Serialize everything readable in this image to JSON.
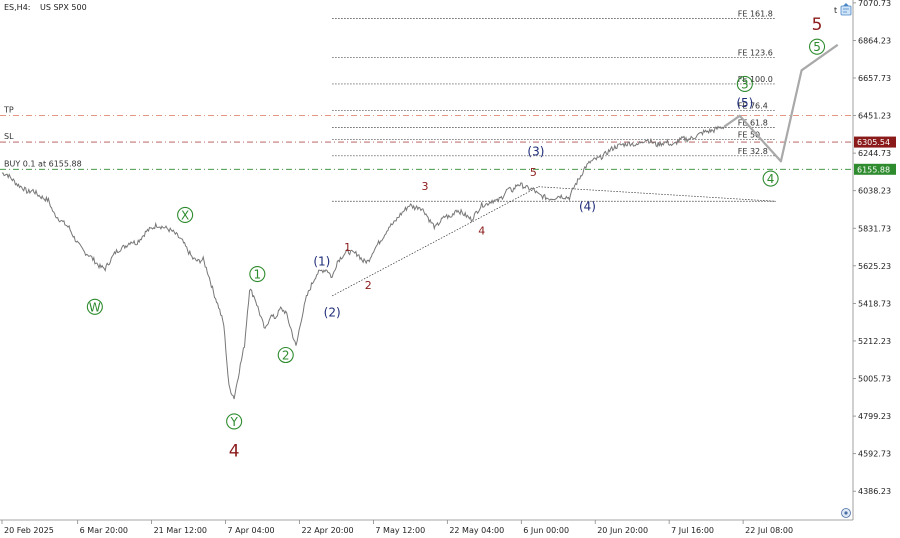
{
  "header": {
    "symbol": "ES,H4:",
    "description": "US SPX 500"
  },
  "corner": {
    "timeframe_label": "t"
  },
  "colors": {
    "price": "#777777",
    "projection": "#a9a9a9",
    "tp": "#e08a72",
    "sl": "#b05050",
    "buy": "#2e8b2e",
    "green": "#2e8b2e",
    "blue": "#1f2d7a",
    "red": "#8b1a1a",
    "axis_bg": "#ffffff"
  },
  "chart_data": {
    "type": "line",
    "ylim": [
      4250,
      7070
    ],
    "y_ticks": [
      "7070.73",
      "6864.23",
      "6657.73",
      "6451.23",
      "6244.73",
      "6038.23",
      "5831.73",
      "5625.23",
      "5418.73",
      "5212.23",
      "5005.73",
      "4799.23",
      "4592.73",
      "4386.23"
    ],
    "y_tick_values": [
      7070.73,
      6864.23,
      6657.73,
      6451.23,
      6244.73,
      6038.23,
      5831.73,
      5625.23,
      5418.73,
      5212.23,
      5005.73,
      4799.23,
      4592.73,
      4386.23
    ],
    "x_ticks": [
      "20 Feb 2025",
      "6 Mar 20:00",
      "21 Mar 12:00",
      "7 Apr 04:00",
      "22 Apr 20:00",
      "7 May 12:00",
      "22 May 04:00",
      "6 Jun 00:00",
      "20 Jun 20:00",
      "7 Jul 16:00",
      "22 Jul 08:00"
    ],
    "x_tick_values": [
      0,
      14.67,
      29,
      43.33,
      57.67,
      72,
      86.33,
      100.67,
      115,
      129.33,
      143.67
    ],
    "xlim": [
      0,
      164
    ],
    "series": [
      {
        "values": [
          [
            0,
            6135
          ],
          [
            1,
            6128
          ],
          [
            2,
            6100
          ],
          [
            3,
            6072
          ],
          [
            4,
            6055
          ],
          [
            5,
            6030
          ],
          [
            6,
            6040
          ],
          [
            7,
            6015
          ],
          [
            8,
            5998
          ],
          [
            9,
            5985
          ],
          [
            10,
            5915
          ],
          [
            11,
            5885
          ],
          [
            12,
            5860
          ],
          [
            13,
            5835
          ],
          [
            14,
            5780
          ],
          [
            15,
            5735
          ],
          [
            16,
            5700
          ],
          [
            17,
            5682
          ],
          [
            18,
            5650
          ],
          [
            19,
            5620
          ],
          [
            20,
            5610
          ],
          [
            21,
            5655
          ],
          [
            22,
            5700
          ],
          [
            23,
            5720
          ],
          [
            24,
            5735
          ],
          [
            25,
            5760
          ],
          [
            26,
            5750
          ],
          [
            27,
            5780
          ],
          [
            28,
            5815
          ],
          [
            29,
            5830
          ],
          [
            30,
            5850
          ],
          [
            31,
            5840
          ],
          [
            32,
            5830
          ],
          [
            33,
            5815
          ],
          [
            34,
            5790
          ],
          [
            35,
            5760
          ],
          [
            36,
            5710
          ],
          [
            37,
            5665
          ],
          [
            38,
            5650
          ],
          [
            39,
            5660
          ],
          [
            40,
            5580
          ],
          [
            41,
            5480
          ],
          [
            42,
            5400
          ],
          [
            43,
            5300
          ],
          [
            44,
            4960
          ],
          [
            45,
            4900
          ],
          [
            46,
            5050
          ],
          [
            47,
            5190
          ],
          [
            48,
            5500
          ],
          [
            49,
            5450
          ],
          [
            50,
            5360
          ],
          [
            51,
            5270
          ],
          [
            52,
            5350
          ],
          [
            53,
            5340
          ],
          [
            54,
            5390
          ],
          [
            55,
            5370
          ],
          [
            56,
            5280
          ],
          [
            57,
            5180
          ],
          [
            58,
            5330
          ],
          [
            59,
            5450
          ],
          [
            60,
            5520
          ],
          [
            61,
            5580
          ],
          [
            62,
            5600
          ],
          [
            63,
            5605
          ],
          [
            64,
            5560
          ],
          [
            65,
            5650
          ],
          [
            66,
            5680
          ],
          [
            67,
            5705
          ],
          [
            68,
            5695
          ],
          [
            69,
            5690
          ],
          [
            70,
            5650
          ],
          [
            71,
            5650
          ],
          [
            72,
            5710
          ],
          [
            73,
            5750
          ],
          [
            74,
            5790
          ],
          [
            75,
            5840
          ],
          [
            76,
            5860
          ],
          [
            77,
            5900
          ],
          [
            78,
            5930
          ],
          [
            79,
            5960
          ],
          [
            80,
            5945
          ],
          [
            81,
            5950
          ],
          [
            82,
            5920
          ],
          [
            83,
            5870
          ],
          [
            84,
            5835
          ],
          [
            85,
            5870
          ],
          [
            86,
            5900
          ],
          [
            87,
            5890
          ],
          [
            88,
            5935
          ],
          [
            89,
            5920
          ],
          [
            90,
            5900
          ],
          [
            91,
            5880
          ],
          [
            92,
            5920
          ],
          [
            93,
            5960
          ],
          [
            94,
            5965
          ],
          [
            95,
            5985
          ],
          [
            96,
            5980
          ],
          [
            97,
            6005
          ],
          [
            98,
            6045
          ],
          [
            99,
            6040
          ],
          [
            100,
            6075
          ],
          [
            101,
            6065
          ],
          [
            102,
            6050
          ],
          [
            103,
            6045
          ],
          [
            104,
            6015
          ],
          [
            105,
            6005
          ],
          [
            106,
            5995
          ],
          [
            107,
            5998
          ],
          [
            108,
            6010
          ],
          [
            109,
            6005
          ],
          [
            110,
            6000
          ],
          [
            111,
            6065
          ],
          [
            112,
            6110
          ],
          [
            113,
            6165
          ],
          [
            114,
            6195
          ],
          [
            115,
            6210
          ],
          [
            116,
            6220
          ],
          [
            117,
            6240
          ],
          [
            118,
            6265
          ],
          [
            119,
            6280
          ],
          [
            120,
            6290
          ],
          [
            121,
            6295
          ],
          [
            122,
            6300
          ],
          [
            123,
            6285
          ],
          [
            124,
            6310
          ],
          [
            125,
            6320
          ],
          [
            126,
            6305
          ],
          [
            127,
            6290
          ],
          [
            128,
            6300
          ],
          [
            129,
            6305
          ],
          [
            130,
            6285
          ],
          [
            131,
            6310
          ],
          [
            132,
            6325
          ],
          [
            133,
            6320
          ],
          [
            134,
            6330
          ],
          [
            135,
            6345
          ],
          [
            136,
            6360
          ],
          [
            137,
            6365
          ],
          [
            138,
            6370
          ],
          [
            139,
            6385
          ],
          [
            140,
            6390
          ]
        ]
      },
      {
        "values": [
          [
            140,
            6390
          ],
          [
            143,
            6450
          ],
          [
            151,
            6200
          ],
          [
            155,
            6700
          ],
          [
            162,
            6840
          ]
        ]
      }
    ],
    "trendlines": [
      {
        "x1": 64,
        "y1": 5460,
        "x2": 104,
        "y2": 6060
      },
      {
        "x1": 104,
        "y1": 6060,
        "x2": 150,
        "y2": 5980
      }
    ],
    "levels": [
      {
        "label": "FE 161.8",
        "value": 6985,
        "x_start": 64
      },
      {
        "label": "FE 123.6",
        "value": 6770,
        "x_start": 64
      },
      {
        "label": "FE 100.0",
        "value": 6625,
        "x_start": 64
      },
      {
        "label": "FE 76.4",
        "value": 6480,
        "x_start": 64
      },
      {
        "label": "FE 61.8",
        "value": 6385,
        "x_start": 64
      },
      {
        "label": "FE 50",
        "value": 6320,
        "x_start": 64
      },
      {
        "label": "FE 32.8",
        "value": 6230,
        "x_start": 64
      },
      {
        "label": "",
        "value": 5980,
        "x_start": 64
      }
    ],
    "trade_lines": [
      {
        "label": "TP",
        "value": 6451.23,
        "color": "#e08a72"
      },
      {
        "label": "SL",
        "value": 6305.54,
        "color": "#b05050"
      },
      {
        "label": "BUY 0.1 at 6155.88",
        "value": 6155.88,
        "color": "#2e8b2e"
      }
    ],
    "price_tags": [
      {
        "text": "6305.54",
        "value": 6305.54,
        "bg": "#8b1a1a"
      },
      {
        "text": "6155.88",
        "value": 6155.88,
        "bg": "#2e8b2e"
      }
    ],
    "wave_labels": [
      {
        "text": "W",
        "x": 18,
        "y": 5400,
        "style": "circle",
        "color": "#2e8b2e"
      },
      {
        "text": "X",
        "x": 35.5,
        "y": 5905,
        "style": "circle",
        "color": "#2e8b2e"
      },
      {
        "text": "Y",
        "x": 45,
        "y": 4770,
        "style": "circle",
        "color": "#2e8b2e"
      },
      {
        "text": "4",
        "x": 45,
        "y": 4610,
        "style": "big",
        "color": "#8b1a1a"
      },
      {
        "text": "1",
        "x": 49.5,
        "y": 5580,
        "style": "circle",
        "color": "#2e8b2e"
      },
      {
        "text": "2",
        "x": 55,
        "y": 5135,
        "style": "circle",
        "color": "#2e8b2e"
      },
      {
        "text": "(1)",
        "x": 62,
        "y": 5650,
        "style": "paren",
        "color": "#1f2d7a"
      },
      {
        "text": "(2)",
        "x": 64,
        "y": 5370,
        "style": "paren",
        "color": "#1f2d7a"
      },
      {
        "text": "1",
        "x": 67,
        "y": 5730,
        "style": "plain",
        "color": "#8b1a1a"
      },
      {
        "text": "2",
        "x": 71,
        "y": 5520,
        "style": "plain",
        "color": "#8b1a1a"
      },
      {
        "text": "3",
        "x": 82,
        "y": 6065,
        "style": "plain",
        "color": "#8b1a1a"
      },
      {
        "text": "4",
        "x": 93,
        "y": 5820,
        "style": "plain",
        "color": "#8b1a1a"
      },
      {
        "text": "5",
        "x": 103,
        "y": 6140,
        "style": "plain",
        "color": "#8b1a1a"
      },
      {
        "text": "(3)",
        "x": 103.5,
        "y": 6255,
        "style": "paren",
        "color": "#1f2d7a"
      },
      {
        "text": "(4)",
        "x": 113.5,
        "y": 5950,
        "style": "paren",
        "color": "#1f2d7a"
      },
      {
        "text": "(5)",
        "x": 144,
        "y": 6520,
        "style": "paren",
        "color": "#1f2d7a"
      },
      {
        "text": "3",
        "x": 144,
        "y": 6625,
        "style": "circle",
        "color": "#2e8b2e"
      },
      {
        "text": "4",
        "x": 149,
        "y": 6105,
        "style": "circle",
        "color": "#2e8b2e"
      },
      {
        "text": "5",
        "x": 158,
        "y": 6830,
        "style": "circle",
        "color": "#2e8b2e"
      },
      {
        "text": "5",
        "x": 158,
        "y": 6955,
        "style": "big",
        "color": "#8b1a1a"
      }
    ]
  }
}
